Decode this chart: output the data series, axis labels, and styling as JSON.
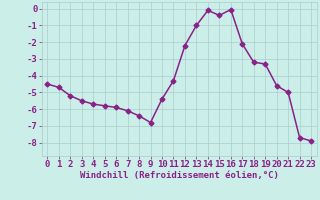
{
  "x": [
    0,
    1,
    2,
    3,
    4,
    5,
    6,
    7,
    8,
    9,
    10,
    11,
    12,
    13,
    14,
    15,
    16,
    17,
    18,
    19,
    20,
    21,
    22,
    23
  ],
  "y": [
    -4.5,
    -4.7,
    -5.2,
    -5.5,
    -5.7,
    -5.8,
    -5.9,
    -6.1,
    -6.4,
    -6.8,
    -5.4,
    -4.3,
    -2.2,
    -1.0,
    -0.1,
    -0.4,
    -0.05,
    -2.1,
    -3.2,
    -3.3,
    -4.6,
    -5.0,
    -7.7,
    -7.9
  ],
  "line_color": "#882288",
  "marker": "D",
  "markersize": 2.5,
  "linewidth": 1.1,
  "bg_color": "#cceee8",
  "grid_color": "#aacccc",
  "xlabel": "Windchill (Refroidissement éolien,°C)",
  "xlabel_fontsize": 6.5,
  "tick_fontsize": 6.5,
  "label_color": "#882288",
  "ylim": [
    -8.8,
    0.4
  ],
  "xlim": [
    -0.5,
    23.5
  ],
  "yticks": [
    0,
    -1,
    -2,
    -3,
    -4,
    -5,
    -6,
    -7,
    -8
  ],
  "xticks": [
    0,
    1,
    2,
    3,
    4,
    5,
    6,
    7,
    8,
    9,
    10,
    11,
    12,
    13,
    14,
    15,
    16,
    17,
    18,
    19,
    20,
    21,
    22,
    23
  ]
}
